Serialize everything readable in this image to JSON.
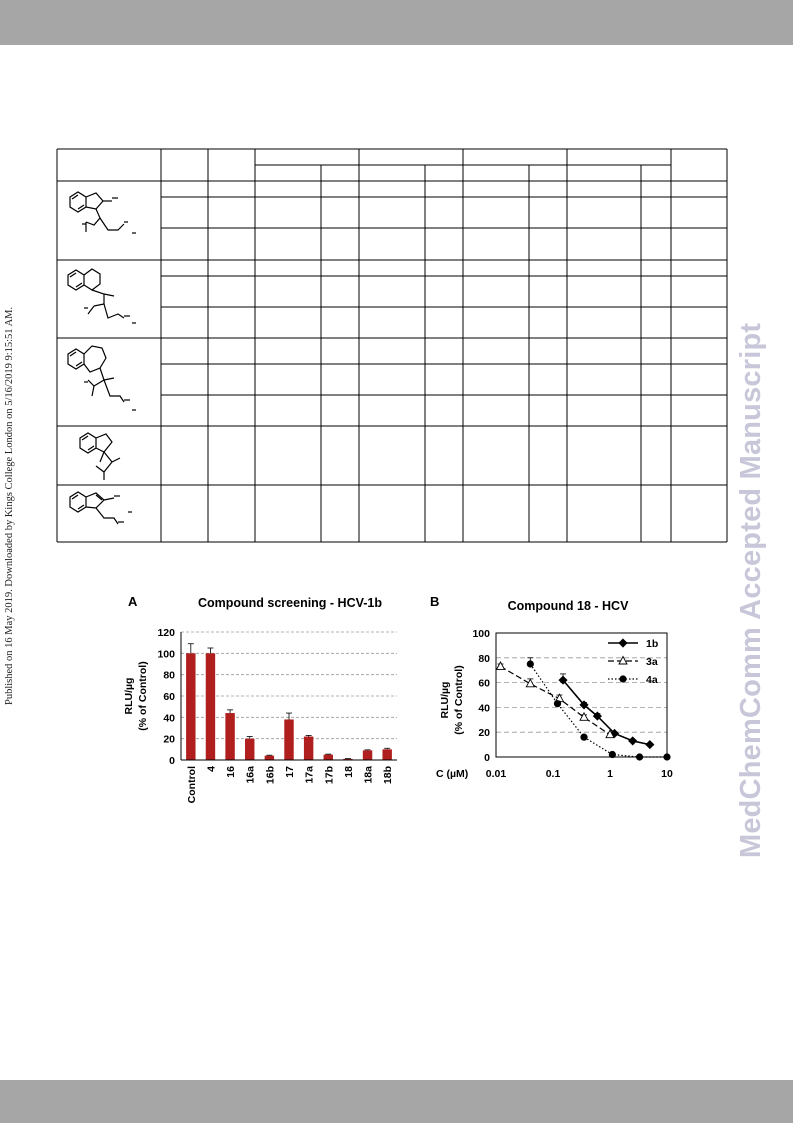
{
  "side_note": "Published on 16 May 2019. Downloaded by Kings College London on 5/16/2019 9:15:51 AM.",
  "watermark": "MedChemComm Accepted Manuscript",
  "colors": {
    "band": "#a6a6a6",
    "bar": "#b01e1e",
    "watermark": "#c7c7d9",
    "grid": "#9a9a9a"
  },
  "figure_a": {
    "panel_label": "A",
    "chart_data": {
      "type": "bar",
      "title": "Compound screening - HCV-1b",
      "ylabel_line1": "RLU/µg",
      "ylabel_line2": "(% of Control)",
      "ylim": [
        0,
        120
      ],
      "yticks": [
        0,
        20,
        40,
        60,
        80,
        100,
        120
      ],
      "grid": true,
      "categories": [
        "Control",
        "4",
        "16",
        "16a",
        "16b",
        "17",
        "17a",
        "17b",
        "18",
        "18a",
        "18b"
      ],
      "values": [
        100,
        100,
        44,
        20,
        4,
        38,
        22,
        5,
        1,
        9,
        10
      ],
      "errors": [
        9,
        5,
        3,
        2,
        0.5,
        6,
        1,
        0.5,
        0.3,
        0.5,
        1
      ]
    }
  },
  "figure_b": {
    "panel_label": "B",
    "chart_data": {
      "type": "line",
      "title": "Compound 18 - HCV",
      "ylabel_line1": "RLU/µg",
      "ylabel_line2": "(% of Control)",
      "xlabel": "C (µM)",
      "xscale": "log",
      "xlim": [
        0.01,
        10
      ],
      "xticks": [
        "0.01",
        "0.1",
        "1",
        "10"
      ],
      "ylim": [
        0,
        100
      ],
      "yticks": [
        0,
        20,
        40,
        60,
        80,
        100
      ],
      "legend_position": "top-right",
      "series": [
        {
          "name": "1b",
          "marker": "diamond",
          "line": "solid",
          "x": [
            0.15,
            0.35,
            0.6,
            1.2,
            2.5,
            5
          ],
          "y": [
            62,
            42,
            33,
            19,
            13,
            10
          ],
          "errors": [
            5,
            2,
            2,
            1,
            1,
            1
          ]
        },
        {
          "name": "3a",
          "marker": "triangle",
          "line": "dashed",
          "x": [
            0.012,
            0.04,
            0.13,
            0.35,
            1.0
          ],
          "y": [
            73,
            59,
            47,
            32,
            18
          ],
          "errors": [
            2,
            4,
            3,
            2,
            1
          ]
        },
        {
          "name": "4a",
          "marker": "circle",
          "line": "dotted",
          "x": [
            0.04,
            0.12,
            0.35,
            1.1,
            3.3,
            10
          ],
          "y": [
            75,
            43,
            16,
            2,
            0,
            0
          ],
          "errors": [
            5,
            2,
            1,
            0.5,
            0.2,
            0.1
          ]
        }
      ]
    }
  }
}
